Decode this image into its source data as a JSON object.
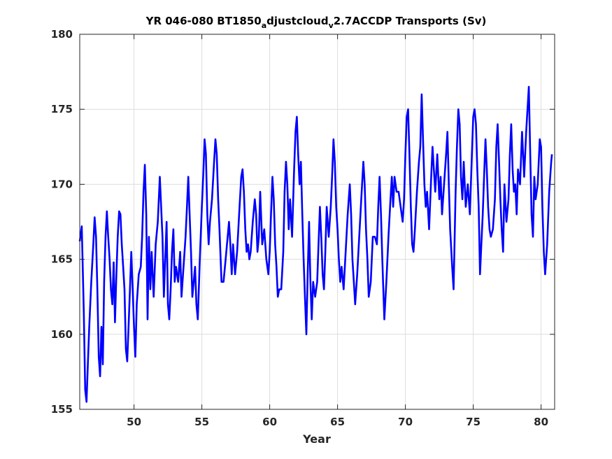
{
  "chart_data": {
    "type": "line",
    "title": {
      "part1": "YR 046-080 BT1850",
      "sub1": "a",
      "part2": "djustcloud",
      "sub2": "v",
      "part3": "2.7ACCDP Transports (Sv)"
    },
    "xlabel": "Year",
    "ylabel": "",
    "xlim": [
      46,
      81
    ],
    "ylim": [
      155,
      180
    ],
    "xticks": [
      "50",
      "55",
      "60",
      "65",
      "70",
      "75",
      "80"
    ],
    "yticks": [
      "155",
      "160",
      "165",
      "170",
      "175",
      "180"
    ],
    "grid": true,
    "series": [
      {
        "color": "#0000ff",
        "points": [
          [
            46.0,
            166.2
          ],
          [
            46.15,
            167.2
          ],
          [
            46.3,
            161.5
          ],
          [
            46.4,
            156.3
          ],
          [
            46.5,
            155.5
          ],
          [
            46.6,
            158.0
          ],
          [
            46.7,
            160.5
          ],
          [
            46.85,
            163.5
          ],
          [
            47.0,
            166.0
          ],
          [
            47.1,
            167.8
          ],
          [
            47.2,
            166.5
          ],
          [
            47.3,
            163.0
          ],
          [
            47.4,
            158.5
          ],
          [
            47.5,
            157.2
          ],
          [
            47.6,
            160.5
          ],
          [
            47.7,
            158.0
          ],
          [
            47.8,
            163.5
          ],
          [
            47.9,
            166.5
          ],
          [
            48.0,
            168.2
          ],
          [
            48.1,
            166.5
          ],
          [
            48.2,
            165.0
          ],
          [
            48.3,
            163.0
          ],
          [
            48.4,
            162.0
          ],
          [
            48.5,
            164.8
          ],
          [
            48.6,
            160.8
          ],
          [
            48.7,
            164.0
          ],
          [
            48.8,
            166.5
          ],
          [
            48.9,
            168.2
          ],
          [
            49.0,
            168.0
          ],
          [
            49.1,
            166.0
          ],
          [
            49.2,
            164.5
          ],
          [
            49.3,
            163.0
          ],
          [
            49.4,
            159.0
          ],
          [
            49.5,
            158.2
          ],
          [
            49.6,
            160.5
          ],
          [
            49.7,
            163.0
          ],
          [
            49.8,
            165.5
          ],
          [
            49.9,
            163.0
          ],
          [
            50.0,
            160.5
          ],
          [
            50.1,
            158.5
          ],
          [
            50.2,
            162.0
          ],
          [
            50.35,
            164.0
          ],
          [
            50.5,
            164.5
          ],
          [
            50.6,
            166.5
          ],
          [
            50.7,
            169.5
          ],
          [
            50.8,
            171.3
          ],
          [
            50.9,
            168.0
          ],
          [
            51.0,
            161.0
          ],
          [
            51.1,
            166.5
          ],
          [
            51.2,
            163.0
          ],
          [
            51.3,
            165.5
          ],
          [
            51.45,
            162.5
          ],
          [
            51.6,
            166.0
          ],
          [
            51.75,
            167.5
          ],
          [
            51.9,
            170.5
          ],
          [
            52.0,
            168.5
          ],
          [
            52.1,
            166.5
          ],
          [
            52.2,
            162.5
          ],
          [
            52.3,
            165.0
          ],
          [
            52.4,
            167.5
          ],
          [
            52.5,
            162.0
          ],
          [
            52.6,
            161.0
          ],
          [
            52.7,
            163.0
          ],
          [
            52.8,
            165.5
          ],
          [
            52.9,
            167.0
          ],
          [
            53.0,
            163.5
          ],
          [
            53.1,
            164.5
          ],
          [
            53.25,
            163.5
          ],
          [
            53.4,
            165.5
          ],
          [
            53.5,
            162.5
          ],
          [
            53.65,
            164.5
          ],
          [
            53.8,
            166.5
          ],
          [
            53.9,
            168.5
          ],
          [
            54.0,
            170.5
          ],
          [
            54.1,
            168.0
          ],
          [
            54.2,
            165.5
          ],
          [
            54.3,
            162.5
          ],
          [
            54.4,
            163.5
          ],
          [
            54.5,
            164.5
          ],
          [
            54.6,
            162.0
          ],
          [
            54.7,
            161.0
          ],
          [
            54.85,
            165.0
          ],
          [
            55.0,
            168.5
          ],
          [
            55.1,
            170.5
          ],
          [
            55.2,
            173.0
          ],
          [
            55.3,
            172.0
          ],
          [
            55.4,
            168.0
          ],
          [
            55.5,
            166.0
          ],
          [
            55.6,
            167.5
          ],
          [
            55.75,
            169.0
          ],
          [
            55.9,
            171.5
          ],
          [
            56.0,
            173.0
          ],
          [
            56.1,
            172.0
          ],
          [
            56.2,
            169.0
          ],
          [
            56.3,
            167.0
          ],
          [
            56.45,
            163.5
          ],
          [
            56.6,
            163.5
          ],
          [
            56.75,
            165.0
          ],
          [
            56.9,
            166.5
          ],
          [
            57.0,
            167.5
          ],
          [
            57.1,
            166.0
          ],
          [
            57.2,
            164.0
          ],
          [
            57.3,
            166.0
          ],
          [
            57.45,
            164.0
          ],
          [
            57.6,
            165.5
          ],
          [
            57.75,
            168.0
          ],
          [
            57.9,
            170.5
          ],
          [
            58.0,
            171.0
          ],
          [
            58.1,
            169.5
          ],
          [
            58.2,
            167.0
          ],
          [
            58.3,
            165.5
          ],
          [
            58.4,
            166.0
          ],
          [
            58.5,
            165.0
          ],
          [
            58.6,
            165.5
          ],
          [
            58.75,
            167.5
          ],
          [
            58.9,
            169.0
          ],
          [
            59.0,
            168.0
          ],
          [
            59.1,
            165.5
          ],
          [
            59.2,
            166.5
          ],
          [
            59.3,
            169.5
          ],
          [
            59.45,
            166.0
          ],
          [
            59.6,
            167.0
          ],
          [
            59.75,
            165.0
          ],
          [
            59.9,
            164.0
          ],
          [
            60.0,
            165.5
          ],
          [
            60.1,
            168.0
          ],
          [
            60.2,
            170.5
          ],
          [
            60.3,
            169.0
          ],
          [
            60.4,
            166.0
          ],
          [
            60.5,
            164.5
          ],
          [
            60.6,
            162.5
          ],
          [
            60.7,
            163.0
          ],
          [
            60.85,
            163.0
          ],
          [
            61.0,
            165.5
          ],
          [
            61.1,
            169.5
          ],
          [
            61.2,
            171.5
          ],
          [
            61.3,
            170.0
          ],
          [
            61.4,
            167.0
          ],
          [
            61.5,
            169.0
          ],
          [
            61.65,
            166.5
          ],
          [
            61.8,
            171.0
          ],
          [
            61.9,
            173.5
          ],
          [
            62.0,
            174.5
          ],
          [
            62.1,
            172.0
          ],
          [
            62.2,
            170.0
          ],
          [
            62.3,
            171.5
          ],
          [
            62.4,
            168.0
          ],
          [
            62.5,
            165.0
          ],
          [
            62.6,
            162.5
          ],
          [
            62.7,
            160.0
          ],
          [
            62.8,
            164.0
          ],
          [
            62.9,
            167.5
          ],
          [
            63.0,
            163.5
          ],
          [
            63.1,
            161.0
          ],
          [
            63.2,
            163.5
          ],
          [
            63.35,
            162.5
          ],
          [
            63.5,
            163.5
          ],
          [
            63.6,
            166.0
          ],
          [
            63.7,
            168.5
          ],
          [
            63.8,
            166.5
          ],
          [
            63.9,
            164.0
          ],
          [
            64.0,
            163.0
          ],
          [
            64.1,
            165.5
          ],
          [
            64.2,
            168.5
          ],
          [
            64.35,
            166.5
          ],
          [
            64.5,
            168.5
          ],
          [
            64.6,
            170.5
          ],
          [
            64.7,
            173.0
          ],
          [
            64.8,
            171.5
          ],
          [
            64.9,
            168.5
          ],
          [
            65.0,
            167.0
          ],
          [
            65.1,
            165.0
          ],
          [
            65.2,
            163.5
          ],
          [
            65.3,
            164.5
          ],
          [
            65.45,
            163.0
          ],
          [
            65.6,
            165.5
          ],
          [
            65.75,
            168.0
          ],
          [
            65.9,
            170.0
          ],
          [
            66.0,
            168.0
          ],
          [
            66.1,
            165.0
          ],
          [
            66.2,
            163.5
          ],
          [
            66.3,
            162.0
          ],
          [
            66.45,
            164.0
          ],
          [
            66.6,
            166.5
          ],
          [
            66.75,
            169.0
          ],
          [
            66.9,
            171.5
          ],
          [
            67.0,
            170.0
          ],
          [
            67.1,
            167.0
          ],
          [
            67.2,
            165.0
          ],
          [
            67.3,
            162.5
          ],
          [
            67.45,
            163.5
          ],
          [
            67.6,
            166.5
          ],
          [
            67.75,
            166.5
          ],
          [
            67.9,
            166.0
          ],
          [
            68.0,
            168.5
          ],
          [
            68.1,
            170.5
          ],
          [
            68.2,
            168.0
          ],
          [
            68.3,
            165.0
          ],
          [
            68.45,
            161.0
          ],
          [
            68.6,
            163.5
          ],
          [
            68.75,
            166.5
          ],
          [
            68.9,
            169.0
          ],
          [
            69.0,
            170.5
          ],
          [
            69.1,
            168.5
          ],
          [
            69.2,
            170.5
          ],
          [
            69.35,
            169.5
          ],
          [
            69.5,
            169.5
          ],
          [
            69.65,
            168.5
          ],
          [
            69.8,
            167.5
          ],
          [
            69.9,
            169.0
          ],
          [
            70.0,
            172.0
          ],
          [
            70.1,
            174.5
          ],
          [
            70.2,
            175.0
          ],
          [
            70.3,
            172.0
          ],
          [
            70.4,
            168.5
          ],
          [
            70.5,
            166.0
          ],
          [
            70.6,
            165.5
          ],
          [
            70.7,
            167.0
          ],
          [
            70.85,
            169.5
          ],
          [
            71.0,
            171.5
          ],
          [
            71.1,
            172.5
          ],
          [
            71.2,
            176.0
          ],
          [
            71.3,
            173.0
          ],
          [
            71.4,
            170.0
          ],
          [
            71.5,
            168.5
          ],
          [
            71.6,
            169.5
          ],
          [
            71.75,
            167.0
          ],
          [
            71.9,
            170.5
          ],
          [
            72.0,
            172.5
          ],
          [
            72.1,
            171.0
          ],
          [
            72.2,
            169.5
          ],
          [
            72.35,
            172.0
          ],
          [
            72.5,
            169.0
          ],
          [
            72.6,
            170.5
          ],
          [
            72.7,
            168.0
          ],
          [
            72.85,
            170.0
          ],
          [
            73.0,
            172.0
          ],
          [
            73.1,
            173.5
          ],
          [
            73.2,
            170.0
          ],
          [
            73.3,
            167.0
          ],
          [
            73.45,
            164.5
          ],
          [
            73.55,
            163.0
          ],
          [
            73.7,
            169.5
          ],
          [
            73.8,
            172.5
          ],
          [
            73.9,
            175.0
          ],
          [
            74.0,
            174.0
          ],
          [
            74.1,
            170.5
          ],
          [
            74.2,
            169.0
          ],
          [
            74.3,
            171.5
          ],
          [
            74.45,
            168.5
          ],
          [
            74.6,
            170.0
          ],
          [
            74.75,
            168.0
          ],
          [
            74.9,
            172.0
          ],
          [
            75.0,
            174.5
          ],
          [
            75.1,
            175.0
          ],
          [
            75.2,
            174.0
          ],
          [
            75.3,
            171.0
          ],
          [
            75.4,
            168.5
          ],
          [
            75.5,
            164.0
          ],
          [
            75.6,
            166.0
          ],
          [
            75.7,
            168.0
          ],
          [
            75.8,
            170.5
          ],
          [
            75.9,
            173.0
          ],
          [
            76.0,
            171.0
          ],
          [
            76.1,
            168.5
          ],
          [
            76.2,
            167.0
          ],
          [
            76.3,
            166.5
          ],
          [
            76.45,
            167.0
          ],
          [
            76.6,
            169.0
          ],
          [
            76.7,
            172.5
          ],
          [
            76.8,
            174.0
          ],
          [
            76.9,
            171.5
          ],
          [
            77.0,
            169.0
          ],
          [
            77.1,
            167.0
          ],
          [
            77.2,
            165.5
          ],
          [
            77.3,
            170.0
          ],
          [
            77.45,
            167.5
          ],
          [
            77.6,
            169.0
          ],
          [
            77.7,
            172.0
          ],
          [
            77.8,
            174.0
          ],
          [
            77.9,
            171.0
          ],
          [
            78.0,
            169.5
          ],
          [
            78.1,
            170.0
          ],
          [
            78.2,
            168.0
          ],
          [
            78.3,
            171.0
          ],
          [
            78.45,
            170.0
          ],
          [
            78.6,
            173.5
          ],
          [
            78.75,
            170.5
          ],
          [
            78.9,
            173.5
          ],
          [
            79.0,
            175.0
          ],
          [
            79.1,
            176.5
          ],
          [
            79.2,
            172.0
          ],
          [
            79.3,
            168.0
          ],
          [
            79.4,
            166.5
          ],
          [
            79.5,
            170.5
          ],
          [
            79.6,
            169.0
          ],
          [
            79.75,
            170.0
          ],
          [
            79.9,
            173.0
          ],
          [
            80.0,
            172.5
          ],
          [
            80.1,
            168.5
          ],
          [
            80.2,
            165.5
          ],
          [
            80.3,
            164.0
          ],
          [
            80.45,
            166.0
          ],
          [
            80.6,
            169.5
          ],
          [
            80.75,
            171.5
          ],
          [
            80.8,
            172.0
          ]
        ]
      }
    ]
  }
}
